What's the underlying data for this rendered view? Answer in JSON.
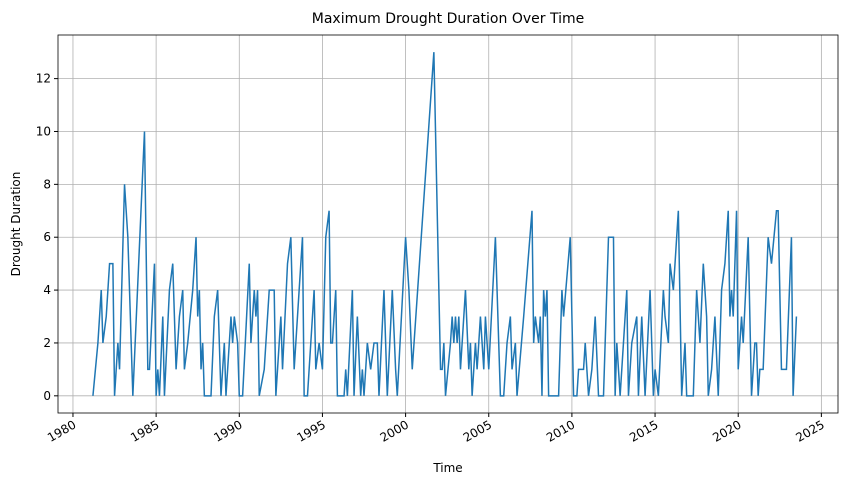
{
  "chart_data": {
    "type": "line",
    "title": "Maximum Drought Duration Over Time",
    "x_label": "Time",
    "y_label": "Drought Duration",
    "grid": true,
    "xlim": [
      1979.1,
      2026.0
    ],
    "ylim": [
      -0.65,
      13.65
    ],
    "xticks": [
      1980,
      1985,
      1990,
      1995,
      2000,
      2005,
      2010,
      2015,
      2020,
      2025
    ],
    "yticks": [
      0,
      2,
      4,
      6,
      8,
      10,
      12
    ],
    "x": [
      1981.2,
      1981.5,
      1981.7,
      1981.8,
      1982.0,
      1982.2,
      1982.4,
      1982.5,
      1982.7,
      1982.8,
      1983.1,
      1983.3,
      1983.6,
      1984.3,
      1984.5,
      1984.6,
      1984.9,
      1985.0,
      1985.1,
      1985.2,
      1985.4,
      1985.5,
      1985.8,
      1986.0,
      1986.2,
      1986.4,
      1986.6,
      1986.7,
      1986.9,
      1987.2,
      1987.4,
      1987.5,
      1987.6,
      1987.7,
      1987.8,
      1987.9,
      1988.3,
      1988.5,
      1988.7,
      1988.9,
      1989.1,
      1989.2,
      1989.3,
      1989.5,
      1989.6,
      1989.7,
      1989.9,
      1990.0,
      1990.2,
      1990.6,
      1990.7,
      1990.9,
      1991.0,
      1991.1,
      1991.2,
      1991.5,
      1991.6,
      1991.8,
      1992.1,
      1992.2,
      1992.5,
      1992.6,
      1992.9,
      1993.1,
      1993.3,
      1993.6,
      1993.8,
      1993.9,
      1994.1,
      1994.2,
      1994.5,
      1994.6,
      1994.8,
      1995.0,
      1995.2,
      1995.4,
      1995.5,
      1995.6,
      1995.8,
      1995.9,
      1996.3,
      1996.4,
      1996.5,
      1996.8,
      1996.9,
      1997.1,
      1997.3,
      1997.4,
      1997.5,
      1997.7,
      1997.9,
      1998.1,
      1998.3,
      1998.4,
      1998.7,
      1998.9,
      1999.2,
      1999.4,
      1999.5,
      2000.0,
      2000.2,
      2000.4,
      2001.7,
      2002.1,
      2002.2,
      2002.3,
      2002.4,
      2002.7,
      2002.8,
      2002.9,
      2003.0,
      2003.1,
      2003.2,
      2003.3,
      2003.4,
      2003.6,
      2003.8,
      2003.9,
      2004.0,
      2004.2,
      2004.3,
      2004.5,
      2004.7,
      2004.8,
      2005.0,
      2005.4,
      2005.6,
      2005.7,
      2005.9,
      2006.1,
      2006.3,
      2006.4,
      2006.6,
      2006.7,
      2007.1,
      2007.6,
      2007.7,
      2007.8,
      2008.0,
      2008.1,
      2008.2,
      2008.3,
      2008.4,
      2008.5,
      2008.6,
      2009.2,
      2009.4,
      2009.5,
      2009.9,
      2010.1,
      2010.3,
      2010.4,
      2010.7,
      2010.8,
      2011.0,
      2011.2,
      2011.4,
      2011.6,
      2011.9,
      2012.0,
      2012.2,
      2012.5,
      2012.6,
      2012.7,
      2012.9,
      2013.3,
      2013.4,
      2013.6,
      2013.9,
      2014.0,
      2014.2,
      2014.4,
      2014.7,
      2014.9,
      2015.0,
      2015.2,
      2015.5,
      2015.6,
      2015.8,
      2015.9,
      2016.1,
      2016.4,
      2016.6,
      2016.8,
      2016.9,
      2017.3,
      2017.5,
      2017.7,
      2017.9,
      2018.1,
      2018.2,
      2018.4,
      2018.6,
      2018.8,
      2019.0,
      2019.2,
      2019.4,
      2019.5,
      2019.6,
      2019.7,
      2019.9,
      2020.0,
      2020.2,
      2020.3,
      2020.6,
      2020.8,
      2021.0,
      2021.1,
      2021.2,
      2021.3,
      2021.5,
      2021.8,
      2022.0,
      2022.3,
      2022.4,
      2022.6,
      2022.9,
      2023.2,
      2023.3,
      2023.5
    ],
    "series": [
      {
        "color": "#1f77b4",
        "values": [
          0,
          2,
          4,
          2,
          3,
          5,
          5,
          0,
          2,
          1,
          8,
          6,
          0,
          10,
          1,
          1,
          5,
          0,
          1,
          0,
          3,
          0,
          4,
          5,
          1,
          3,
          4,
          1,
          2,
          4,
          6,
          3,
          4,
          1,
          2,
          0,
          0,
          3,
          4,
          0,
          2,
          0,
          1,
          3,
          2,
          3,
          2,
          0,
          0,
          5,
          2,
          4,
          3,
          4,
          0,
          1,
          2,
          4,
          4,
          0,
          3,
          1,
          5,
          6,
          1,
          4,
          6,
          0,
          0,
          1,
          4,
          1,
          2,
          1,
          6,
          7,
          2,
          2,
          4,
          0,
          0,
          1,
          0,
          4,
          0,
          3,
          0,
          1,
          0,
          2,
          1,
          2,
          2,
          0,
          4,
          0,
          4,
          1,
          0,
          6,
          4,
          1,
          13,
          1,
          1,
          2,
          0,
          2,
          3,
          2,
          3,
          2,
          3,
          1,
          2,
          4,
          1,
          2,
          0,
          2,
          1,
          3,
          1,
          3,
          1,
          6,
          2,
          0,
          0,
          2,
          3,
          1,
          2,
          0,
          3,
          7,
          2,
          3,
          2,
          3,
          0,
          4,
          3,
          4,
          0,
          0,
          4,
          3,
          6,
          0,
          0,
          1,
          1,
          2,
          0,
          1,
          3,
          0,
          0,
          2,
          6,
          6,
          0,
          2,
          0,
          4,
          0,
          2,
          3,
          0,
          3,
          0,
          4,
          0,
          1,
          0,
          4,
          3,
          2,
          5,
          4,
          7,
          0,
          2,
          0,
          0,
          4,
          2,
          5,
          3,
          0,
          1,
          3,
          0,
          4,
          5,
          7,
          3,
          4,
          3,
          7,
          1,
          3,
          2,
          6,
          0,
          2,
          2,
          0,
          1,
          1,
          6,
          5,
          7,
          7,
          1,
          1,
          6,
          0,
          3
        ]
      }
    ]
  }
}
